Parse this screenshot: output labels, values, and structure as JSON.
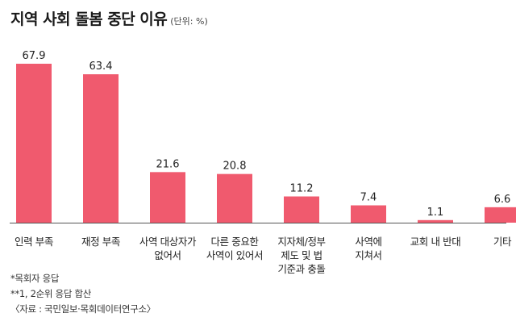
{
  "chart_data": {
    "type": "bar",
    "title": "지역 사회 돌봄 중단 이유",
    "unit": "(단위: %)",
    "categories": [
      [
        "인력 부족"
      ],
      [
        "재정 부족"
      ],
      [
        "사역 대상자가",
        "없어서"
      ],
      [
        "다른 중요한",
        "사역이 있어서"
      ],
      [
        "지자체/정부",
        "제도 및 법",
        "기준과 충돌"
      ],
      [
        "사역에",
        "지쳐서"
      ],
      [
        "교회 내 반대"
      ],
      [
        "기타"
      ]
    ],
    "values": [
      67.9,
      63.4,
      21.6,
      20.8,
      11.2,
      7.4,
      1.1,
      6.6
    ],
    "value_labels": [
      "67.9",
      "63.4",
      "21.6",
      "20.8",
      "11.2",
      "7.4",
      "1.1",
      "6.6"
    ],
    "bar_color": "#f05a6e",
    "axis_color": "#555555",
    "ylim": [
      0,
      67.9
    ]
  },
  "notes": [
    "*목회자 응답",
    "**1, 2순위 응답 합산",
    "〈자료 : 국민일보·목회데이터연구소〉"
  ]
}
